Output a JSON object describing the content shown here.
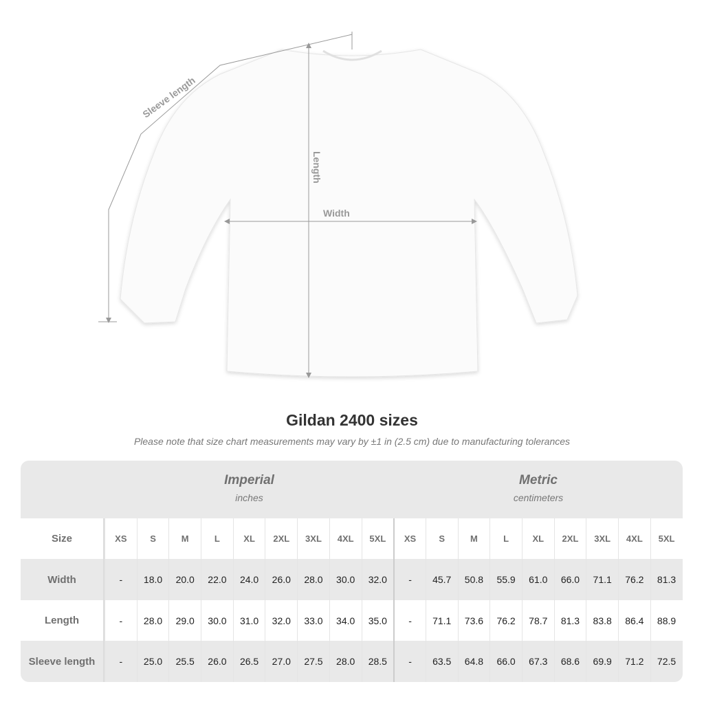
{
  "diagram": {
    "sleeve_label": "Sleeve length",
    "length_label": "Length",
    "width_label": "Width"
  },
  "title": "Gildan 2400 sizes",
  "note": "Please note that size chart measurements may vary by ±1 in (2.5 cm) due to manufacturing tolerances",
  "imperial": {
    "label": "Imperial",
    "unit": "inches"
  },
  "metric": {
    "label": "Metric",
    "unit": "centimeters"
  },
  "sizes": [
    "XS",
    "S",
    "M",
    "L",
    "XL",
    "2XL",
    "3XL",
    "4XL",
    "5XL"
  ],
  "rows": [
    {
      "label": "Size"
    },
    {
      "label": "Width",
      "imperial": [
        "-",
        "18.0",
        "20.0",
        "22.0",
        "24.0",
        "26.0",
        "28.0",
        "30.0",
        "32.0"
      ],
      "metric": [
        "-",
        "45.7",
        "50.8",
        "55.9",
        "61.0",
        "66.0",
        "71.1",
        "76.2",
        "81.3"
      ]
    },
    {
      "label": "Length",
      "imperial": [
        "-",
        "28.0",
        "29.0",
        "30.0",
        "31.0",
        "32.0",
        "33.0",
        "34.0",
        "35.0"
      ],
      "metric": [
        "-",
        "71.1",
        "73.6",
        "76.2",
        "78.7",
        "81.3",
        "83.8",
        "86.4",
        "88.9"
      ]
    },
    {
      "label": "Sleeve length",
      "imperial": [
        "-",
        "25.0",
        "25.5",
        "26.0",
        "26.5",
        "27.0",
        "27.5",
        "28.0",
        "28.5"
      ],
      "metric": [
        "-",
        "63.5",
        "64.8",
        "66.0",
        "67.3",
        "68.6",
        "69.9",
        "71.2",
        "72.5"
      ]
    }
  ]
}
